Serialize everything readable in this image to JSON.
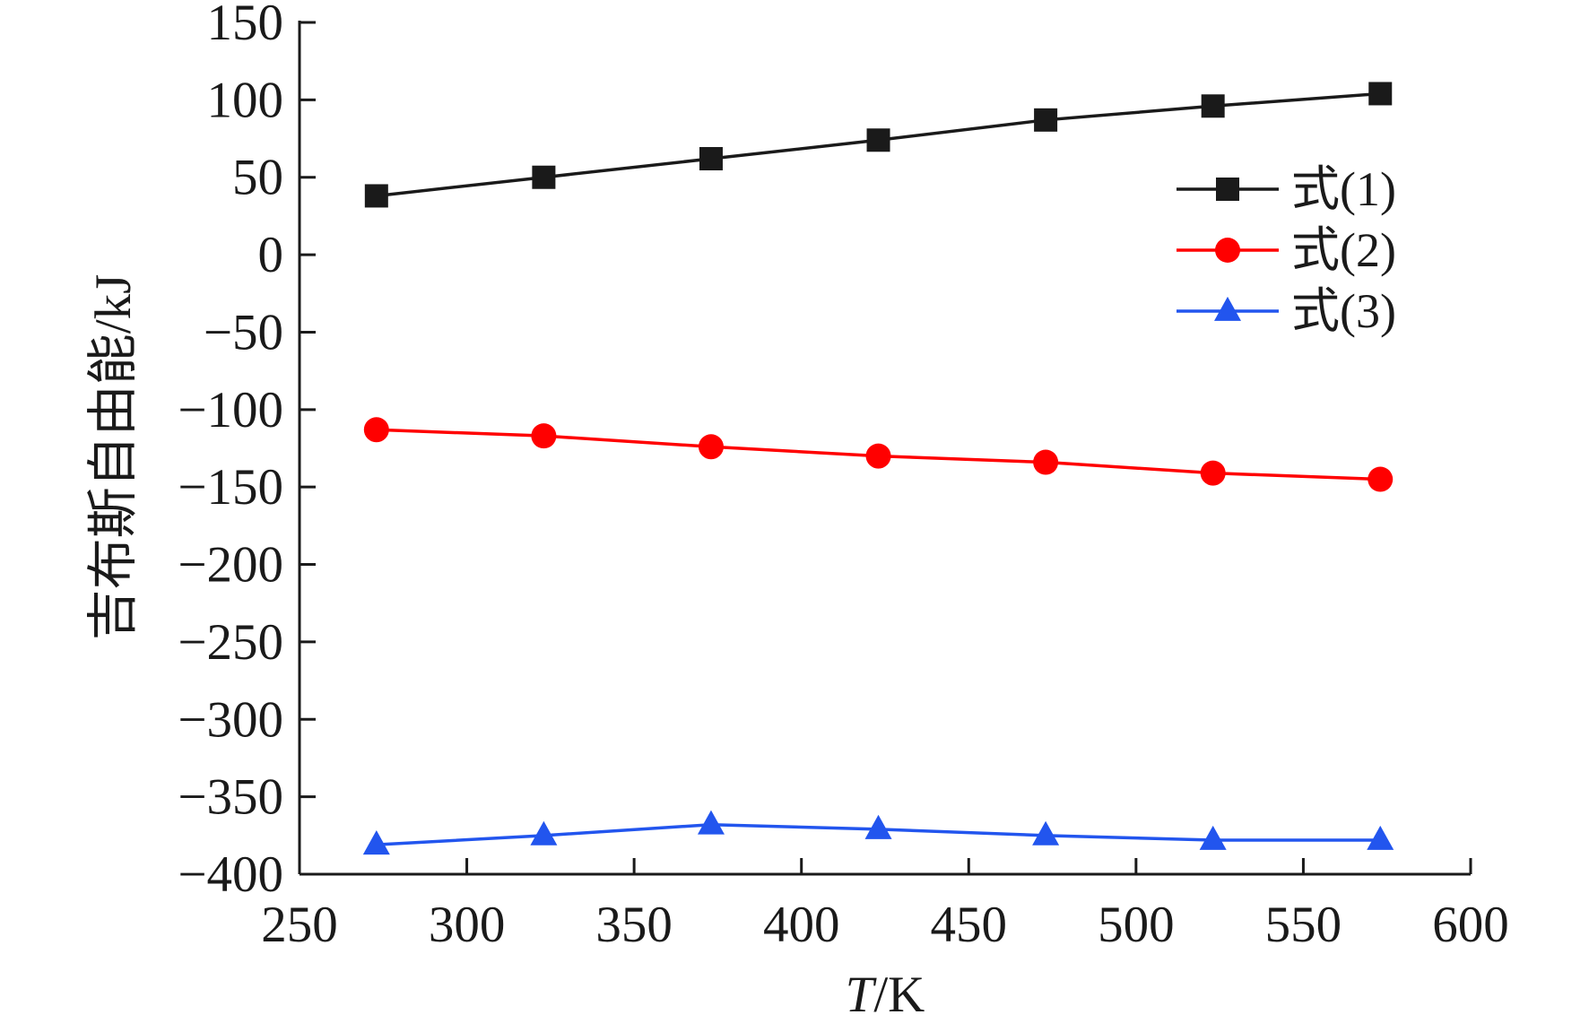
{
  "chart_data": {
    "type": "line",
    "xlabel_italic": "T",
    "xlabel_unit": "/K",
    "ylabel": "吉布斯自由能/kJ",
    "xlim": [
      250,
      600
    ],
    "ylim": [
      -400,
      150
    ],
    "xticks": [
      250,
      300,
      350,
      400,
      450,
      500,
      550,
      600
    ],
    "yticks": [
      150,
      100,
      50,
      0,
      -50,
      -100,
      -150,
      -200,
      -250,
      -300,
      -350,
      -400
    ],
    "x": [
      273,
      323,
      373,
      423,
      473,
      523,
      573
    ],
    "series": [
      {
        "name": "式(1)",
        "color": "#1a1a1a",
        "marker": "square",
        "values": [
          38,
          50,
          62,
          74,
          87,
          96,
          104
        ]
      },
      {
        "name": "式(2)",
        "color": "#ff0000",
        "marker": "circle",
        "values": [
          -113,
          -117,
          -124,
          -130,
          -134,
          -141,
          -145
        ]
      },
      {
        "name": "式(3)",
        "color": "#2255ee",
        "marker": "triangle",
        "values": [
          -381,
          -375,
          -368,
          -371,
          -375,
          -378,
          -378
        ]
      }
    ],
    "legend_position": "top-right",
    "grid": false
  }
}
